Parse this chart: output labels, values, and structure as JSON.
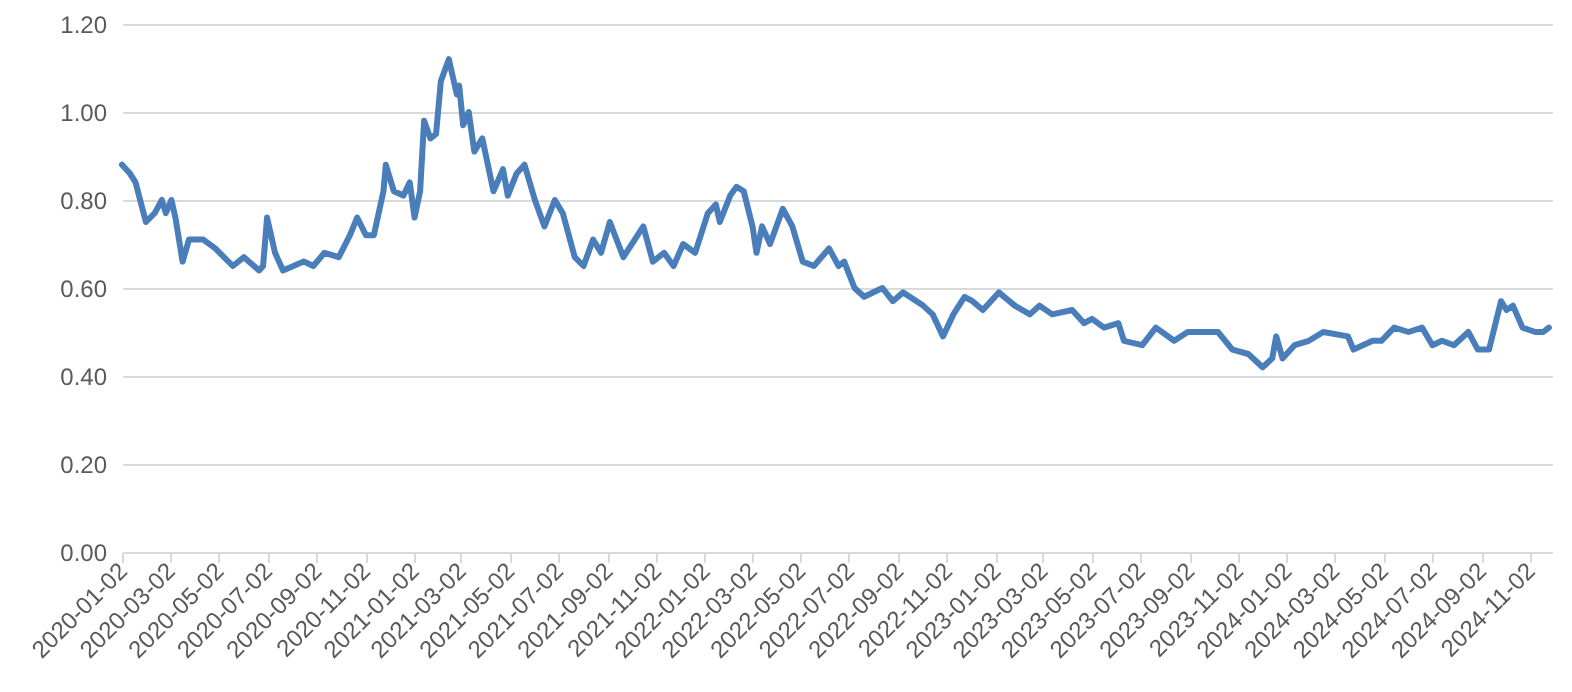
{
  "chart_data": {
    "type": "line",
    "grid": "y",
    "marker": "none",
    "line_style": "solid",
    "xlim": [
      "2020-01-02",
      "2024-11-30"
    ],
    "ylim": [
      0,
      1.2
    ],
    "yticks": [
      {
        "value": 0,
        "label": "0.00"
      },
      {
        "value": 0.2,
        "label": "0.20"
      },
      {
        "value": 0.4,
        "label": "0.40"
      },
      {
        "value": 0.6,
        "label": "0.60"
      },
      {
        "value": 0.8,
        "label": "0.80"
      },
      {
        "value": 1.0,
        "label": "1.00"
      },
      {
        "value": 1.2,
        "label": "1.20"
      }
    ],
    "xticks": [
      "2020-01-02",
      "2020-03-02",
      "2020-05-02",
      "2020-07-02",
      "2020-09-02",
      "2020-11-02",
      "2021-01-02",
      "2021-03-02",
      "2021-05-02",
      "2021-07-02",
      "2021-09-02",
      "2021-11-02",
      "2022-01-02",
      "2022-03-02",
      "2022-05-02",
      "2022-07-02",
      "2022-09-02",
      "2022-11-02",
      "2023-01-02",
      "2023-03-02",
      "2023-05-02",
      "2023-07-02",
      "2023-09-02",
      "2023-11-02",
      "2024-01-02",
      "2024-03-02",
      "2024-05-02",
      "2024-07-02",
      "2024-09-02",
      "2024-11-02"
    ],
    "x": [
      "2020-01-02",
      "2020-01-12",
      "2020-01-19",
      "2020-02-01",
      "2020-02-12",
      "2020-02-21",
      "2020-02-26",
      "2020-03-04",
      "2020-03-09",
      "2020-03-18",
      "2020-03-26",
      "2020-04-13",
      "2020-04-28",
      "2020-05-20",
      "2020-06-03",
      "2020-06-22",
      "2020-06-27",
      "2020-07-02",
      "2020-07-12",
      "2020-07-22",
      "2020-08-17",
      "2020-08-29",
      "2020-09-12",
      "2020-09-30",
      "2020-10-14",
      "2020-10-23",
      "2020-11-03",
      "2020-11-13",
      "2020-11-25",
      "2020-11-28",
      "2020-12-08",
      "2020-12-20",
      "2020-12-28",
      "2021-01-03",
      "2021-01-10",
      "2021-01-15",
      "2021-01-23",
      "2021-01-30",
      "2021-02-05",
      "2021-02-15",
      "2021-02-25",
      "2021-02-28",
      "2021-03-05",
      "2021-03-12",
      "2021-03-19",
      "2021-03-29",
      "2021-04-12",
      "2021-04-24",
      "2021-04-30",
      "2021-05-11",
      "2021-05-21",
      "2021-06-03",
      "2021-06-15",
      "2021-06-28",
      "2021-07-08",
      "2021-07-23",
      "2021-08-03",
      "2021-08-15",
      "2021-08-25",
      "2021-09-05",
      "2021-09-22",
      "2021-10-17",
      "2021-10-29",
      "2021-11-12",
      "2021-11-24",
      "2021-12-06",
      "2021-12-21",
      "2022-01-06",
      "2022-01-16",
      "2022-01-21",
      "2022-02-03",
      "2022-02-11",
      "2022-02-20",
      "2022-03-03",
      "2022-03-08",
      "2022-03-15",
      "2022-03-25",
      "2022-04-10",
      "2022-04-22",
      "2022-05-05",
      "2022-05-19",
      "2022-06-07",
      "2022-06-19",
      "2022-06-26",
      "2022-07-09",
      "2022-07-21",
      "2022-08-13",
      "2022-08-26",
      "2022-09-08",
      "2022-10-03",
      "2022-10-15",
      "2022-10-28",
      "2022-11-10",
      "2022-11-24",
      "2022-12-04",
      "2022-12-17",
      "2023-01-06",
      "2023-01-26",
      "2023-02-14",
      "2023-02-26",
      "2023-03-14",
      "2023-04-08",
      "2023-04-23",
      "2023-05-03",
      "2023-05-18",
      "2023-06-05",
      "2023-06-12",
      "2023-07-05",
      "2023-07-22",
      "2023-08-14",
      "2023-08-31",
      "2023-10-08",
      "2023-10-26",
      "2023-11-15",
      "2023-12-03",
      "2023-12-15",
      "2023-12-20",
      "2023-12-28",
      "2024-01-12",
      "2024-01-30",
      "2024-02-17",
      "2024-03-19",
      "2024-03-26",
      "2024-04-19",
      "2024-04-30",
      "2024-05-16",
      "2024-06-03",
      "2024-06-20",
      "2024-07-03",
      "2024-07-15",
      "2024-07-30",
      "2024-08-17",
      "2024-08-29",
      "2024-09-12",
      "2024-09-27",
      "2024-10-04",
      "2024-10-12",
      "2024-10-24",
      "2024-11-09",
      "2024-11-19",
      "2024-11-26"
    ],
    "series": [
      {
        "color": "#4a7ebb",
        "values": [
          0.88,
          0.86,
          0.84,
          0.75,
          0.77,
          0.8,
          0.77,
          0.8,
          0.76,
          0.66,
          0.71,
          0.71,
          0.69,
          0.65,
          0.67,
          0.64,
          0.65,
          0.76,
          0.68,
          0.64,
          0.66,
          0.65,
          0.68,
          0.67,
          0.72,
          0.76,
          0.72,
          0.72,
          0.82,
          0.88,
          0.82,
          0.81,
          0.84,
          0.76,
          0.82,
          0.98,
          0.94,
          0.95,
          1.07,
          1.12,
          1.04,
          1.06,
          0.97,
          1.0,
          0.91,
          0.94,
          0.82,
          0.87,
          0.81,
          0.86,
          0.88,
          0.8,
          0.74,
          0.8,
          0.77,
          0.67,
          0.65,
          0.71,
          0.68,
          0.75,
          0.67,
          0.74,
          0.66,
          0.68,
          0.65,
          0.7,
          0.68,
          0.77,
          0.79,
          0.75,
          0.81,
          0.83,
          0.82,
          0.74,
          0.68,
          0.74,
          0.7,
          0.78,
          0.74,
          0.66,
          0.65,
          0.69,
          0.65,
          0.66,
          0.6,
          0.58,
          0.6,
          0.57,
          0.59,
          0.56,
          0.54,
          0.49,
          0.54,
          0.58,
          0.57,
          0.55,
          0.59,
          0.56,
          0.54,
          0.56,
          0.54,
          0.55,
          0.52,
          0.53,
          0.51,
          0.52,
          0.48,
          0.47,
          0.51,
          0.48,
          0.5,
          0.5,
          0.46,
          0.45,
          0.42,
          0.44,
          0.49,
          0.44,
          0.47,
          0.48,
          0.5,
          0.49,
          0.46,
          0.48,
          0.48,
          0.51,
          0.5,
          0.51,
          0.47,
          0.48,
          0.47,
          0.5,
          0.46,
          0.46,
          0.57,
          0.55,
          0.56,
          0.51,
          0.5,
          0.5,
          0.51
        ]
      }
    ]
  }
}
